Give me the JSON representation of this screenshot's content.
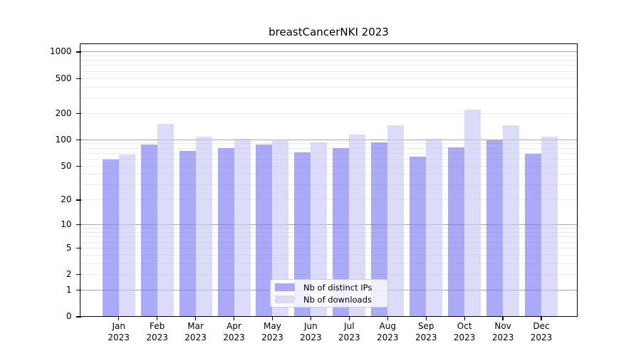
{
  "title": "breastCancerNKI 2023",
  "legend": {
    "items": [
      {
        "label": "Nb of distinct IPs",
        "color": "#aaaaf6"
      },
      {
        "label": "Nb of downloads",
        "color": "#dcdcf8"
      }
    ],
    "position": "lower center"
  },
  "axes": {
    "ytick_labels": [
      "1000",
      "500",
      "200",
      "100",
      "50",
      "20",
      "10",
      "5",
      "2",
      "1",
      "0"
    ],
    "xtick_year": "2023"
  },
  "chart_data": {
    "type": "bar",
    "title": "breastCancerNKI 2023",
    "categories": [
      "Jan 2023",
      "Feb 2023",
      "Mar 2023",
      "Apr 2023",
      "May 2023",
      "Jun 2023",
      "Jul 2023",
      "Aug 2023",
      "Sep 2023",
      "Oct 2023",
      "Nov 2023",
      "Dec 2023"
    ],
    "series": [
      {
        "name": "Nb of distinct IPs",
        "color": "#aaaaf6",
        "values": [
          59,
          87,
          74,
          79,
          88,
          71,
          80,
          92,
          63,
          81,
          98,
          68
        ]
      },
      {
        "name": "Nb of downloads",
        "color": "#dcdcf8",
        "values": [
          67,
          149,
          107,
          102,
          100,
          92,
          114,
          145,
          101,
          219,
          144,
          107
        ]
      }
    ],
    "xlabel": "",
    "ylabel": "",
    "yscale": "log10(value+1)",
    "yticks": [
      0,
      1,
      2,
      5,
      10,
      20,
      50,
      100,
      200,
      500,
      1000
    ],
    "ylim": [
      0,
      1200
    ],
    "grid": {
      "orientation": "horizontal",
      "major_at": [
        1,
        10,
        100,
        1000
      ],
      "minor_at": "2-9, 20-90, 200-900",
      "major_color": "#a8a8a8",
      "minor_color": "#e9e9e9"
    },
    "legend_position": "lower center",
    "bar_alpha": 0.6
  }
}
